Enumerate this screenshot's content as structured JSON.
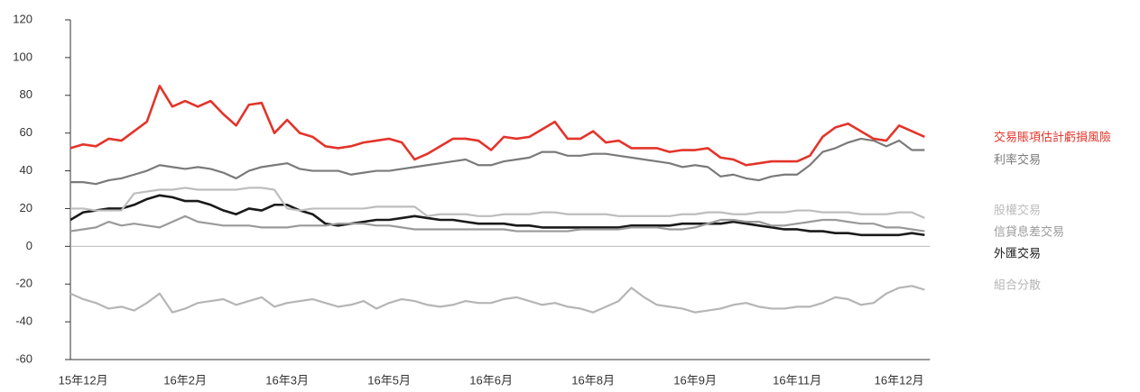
{
  "chart_data": {
    "type": "line",
    "categories": [
      null,
      "15年12月",
      null,
      null,
      null,
      null,
      null,
      null,
      null,
      "16年2月",
      null,
      null,
      null,
      null,
      null,
      null,
      null,
      "16年3月",
      null,
      null,
      null,
      null,
      null,
      null,
      null,
      "16年5月",
      null,
      null,
      null,
      null,
      null,
      null,
      null,
      "16年6月",
      null,
      null,
      null,
      null,
      null,
      null,
      null,
      "16年8月",
      null,
      null,
      null,
      null,
      null,
      null,
      null,
      "16年9月",
      null,
      null,
      null,
      null,
      null,
      null,
      null,
      "16年11月",
      null,
      null,
      null,
      null,
      null,
      null,
      null,
      "16年12月",
      null,
      null
    ],
    "series": [
      {
        "name": "交易賬項估計虧損風險",
        "color": "#e3342a",
        "values": [
          52,
          54,
          53,
          57,
          56,
          61,
          66,
          85,
          74,
          77,
          74,
          77,
          70,
          64,
          75,
          76,
          60,
          67,
          60,
          58,
          53,
          52,
          53,
          55,
          56,
          57,
          55,
          46,
          49,
          53,
          57,
          57,
          56,
          51,
          58,
          57,
          58,
          62,
          66,
          57,
          57,
          61,
          55,
          56,
          52,
          52,
          52,
          50,
          51,
          51,
          52,
          47,
          46,
          43,
          44,
          45,
          45,
          45,
          48,
          58,
          63,
          65,
          61,
          57,
          56,
          64,
          61,
          58
        ]
      },
      {
        "name": "利率交易",
        "color": "#7a7a7a",
        "values": [
          34,
          34,
          33,
          35,
          36,
          38,
          40,
          43,
          42,
          41,
          42,
          41,
          39,
          36,
          40,
          42,
          43,
          44,
          41,
          40,
          40,
          40,
          38,
          39,
          40,
          40,
          41,
          42,
          43,
          44,
          45,
          46,
          43,
          43,
          45,
          46,
          47,
          50,
          50,
          48,
          48,
          49,
          49,
          48,
          47,
          46,
          45,
          44,
          42,
          43,
          42,
          37,
          38,
          36,
          35,
          37,
          38,
          38,
          43,
          50,
          52,
          55,
          57,
          56,
          53,
          56,
          51,
          51
        ]
      },
      {
        "name": "股權交易",
        "color": "#bdbdbd",
        "values": [
          20,
          20,
          19,
          19,
          19,
          28,
          29,
          30,
          30,
          31,
          30,
          30,
          30,
          30,
          31,
          31,
          30,
          20,
          19,
          20,
          20,
          20,
          20,
          20,
          21,
          21,
          21,
          21,
          16,
          17,
          17,
          17,
          16,
          16,
          17,
          17,
          17,
          18,
          18,
          17,
          17,
          17,
          17,
          16,
          16,
          16,
          16,
          16,
          17,
          17,
          18,
          18,
          17,
          17,
          18,
          18,
          18,
          19,
          19,
          18,
          18,
          18,
          17,
          17,
          17,
          18,
          18,
          15
        ]
      },
      {
        "name": "信貸息差交易",
        "color": "#9a9a9a",
        "values": [
          8,
          9,
          10,
          13,
          11,
          12,
          11,
          10,
          13,
          16,
          13,
          12,
          11,
          11,
          11,
          10,
          10,
          10,
          11,
          11,
          11,
          12,
          12,
          12,
          11,
          11,
          10,
          9,
          9,
          9,
          9,
          9,
          9,
          9,
          9,
          8,
          8,
          8,
          8,
          8,
          9,
          9,
          9,
          9,
          10,
          10,
          10,
          9,
          9,
          10,
          12,
          14,
          14,
          13,
          13,
          11,
          11,
          12,
          13,
          14,
          14,
          13,
          12,
          12,
          10,
          10,
          9,
          8
        ]
      },
      {
        "name": "外匯交易",
        "color": "#1a1a1a",
        "values": [
          14,
          18,
          19,
          20,
          20,
          22,
          25,
          27,
          26,
          24,
          24,
          22,
          19,
          17,
          20,
          19,
          22,
          22,
          19,
          17,
          12,
          11,
          12,
          13,
          14,
          14,
          15,
          16,
          15,
          14,
          14,
          13,
          12,
          12,
          12,
          11,
          11,
          10,
          10,
          10,
          10,
          10,
          10,
          10,
          11,
          11,
          11,
          11,
          12,
          12,
          12,
          12,
          13,
          12,
          11,
          10,
          9,
          9,
          8,
          8,
          7,
          7,
          6,
          6,
          6,
          6,
          7,
          6
        ]
      },
      {
        "name": "組合分散",
        "color": "#b5b5b5",
        "values": [
          -25,
          -28,
          -30,
          -33,
          -32,
          -34,
          -30,
          -25,
          -35,
          -33,
          -30,
          -29,
          -28,
          -31,
          -29,
          -27,
          -32,
          -30,
          -29,
          -28,
          -30,
          -32,
          -31,
          -29,
          -33,
          -30,
          -28,
          -29,
          -31,
          -32,
          -31,
          -29,
          -30,
          -30,
          -28,
          -27,
          -29,
          -31,
          -30,
          -32,
          -33,
          -35,
          -32,
          -29,
          -22,
          -27,
          -31,
          -32,
          -33,
          -35,
          -34,
          -33,
          -31,
          -30,
          -32,
          -33,
          -33,
          -32,
          -32,
          -30,
          -27,
          -28,
          -31,
          -30,
          -25,
          -22,
          -21,
          -23
        ]
      }
    ],
    "ylim": [
      -60,
      120
    ],
    "yticks": [
      -60,
      -40,
      -20,
      0,
      20,
      40,
      60,
      80,
      100,
      120
    ]
  }
}
